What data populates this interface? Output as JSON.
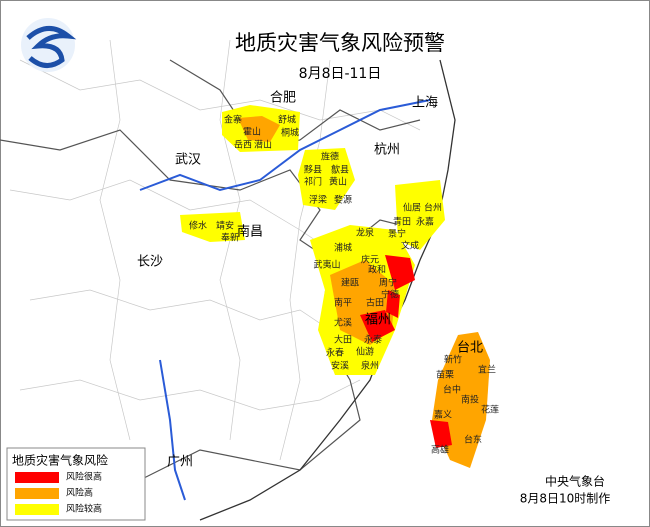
{
  "header": {
    "title": "地质灾害气象风险预警",
    "date": "8月8日-11日"
  },
  "cities": [
    "合肥",
    "上海",
    "杭州",
    "武汉",
    "南昌",
    "长沙",
    "福州",
    "台北",
    "广州"
  ],
  "counties": [
    "金寨",
    "舒城",
    "霍山",
    "桐城",
    "岳西",
    "潜山",
    "旌德",
    "歙县",
    "黟县",
    "祁门",
    "黄山",
    "浮梁",
    "婺源",
    "修水",
    "靖安",
    "奉新",
    "仙居",
    "台州",
    "青田",
    "永嘉",
    "龙泉",
    "景宁",
    "浦城",
    "文成",
    "庆元",
    "武夷山",
    "政和",
    "建瓯",
    "周宁",
    "宁德",
    "南平",
    "古田",
    "尤溪",
    "大田",
    "永泰",
    "永春",
    "仙游",
    "安溪",
    "泉州",
    "宜兰",
    "新竹",
    "苗栗",
    "台中",
    "南投",
    "花莲",
    "嘉义",
    "台东",
    "高雄"
  ],
  "legend": {
    "title": "地质灾害气象风险",
    "items": [
      {
        "label": "风险很高",
        "color": "#ff0000"
      },
      {
        "label": "风险高",
        "color": "#ffa500"
      },
      {
        "label": "风险较高",
        "color": "#ffff00"
      }
    ]
  },
  "footer": {
    "agency": "中央气象台",
    "issued": "8月8日10时制作"
  }
}
